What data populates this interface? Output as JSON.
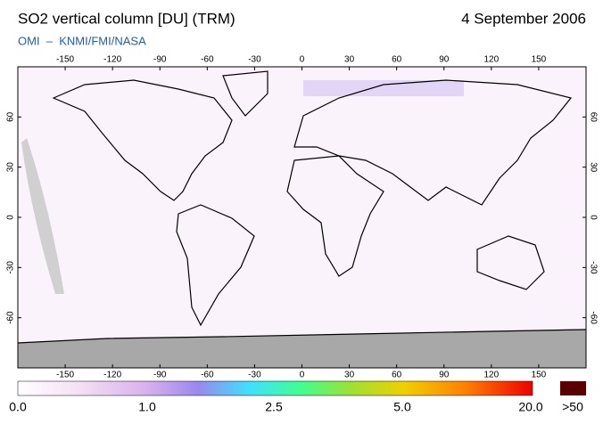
{
  "header": {
    "title": "SO2 vertical column [DU] (TRM)",
    "date": "4 September 2006",
    "subtitle": "OMI  –  KNMI/FMI/NASA"
  },
  "map": {
    "lon_ticks": [
      -150,
      -120,
      -90,
      -60,
      -30,
      0,
      30,
      60,
      90,
      120,
      150
    ],
    "lat_ticks": [
      60,
      30,
      0,
      -30,
      -60
    ]
  },
  "colorbar": {
    "labels": [
      "0.0",
      "1.0",
      "2.5",
      "5.0",
      "20.0",
      ">50"
    ]
  }
}
